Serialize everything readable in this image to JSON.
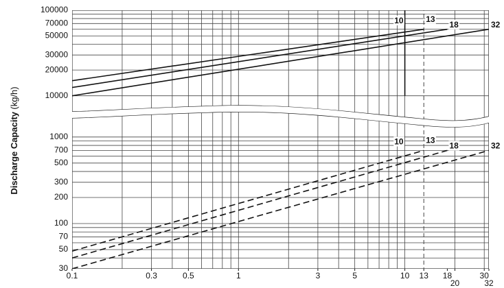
{
  "chart_data": {
    "type": "line",
    "ylabel": "Discharge Capacity",
    "yunit": "(kg/h)",
    "log": true,
    "grid": true,
    "color": "#111111",
    "xlim": [
      0.1,
      32
    ],
    "xticks": [
      0.1,
      0.3,
      0.5,
      1,
      3,
      5,
      10,
      13,
      18,
      20,
      30,
      32
    ],
    "xgrid": [
      0.1,
      0.2,
      0.3,
      0.4,
      0.5,
      0.6,
      0.7,
      0.8,
      0.9,
      1,
      2,
      3,
      4,
      5,
      6,
      7,
      8,
      9,
      10,
      20,
      30
    ],
    "panels": [
      {
        "ylim": [
          6500,
          100000
        ],
        "yticks": [
          10000,
          20000,
          30000,
          50000,
          70000,
          100000
        ],
        "ygrid": [
          10000,
          20000,
          30000,
          40000,
          50000,
          60000,
          70000,
          80000,
          90000,
          100000
        ],
        "dash": false,
        "series": [
          {
            "name": "13",
            "x": [
              0.1,
              13
            ],
            "values": [
              15000,
              60000
            ]
          },
          {
            "name": "18",
            "x": [
              0.1,
              18
            ],
            "values": [
              12500,
              60000
            ]
          },
          {
            "name": "32",
            "x": [
              0.1,
              32
            ],
            "values": [
              10000,
              60000
            ]
          }
        ],
        "ref_lines": [
          {
            "x": 10,
            "label": "10",
            "y": [
              10000,
              100000
            ],
            "dash": false
          },
          {
            "x": 13,
            "dash": true
          }
        ]
      },
      {
        "ylim": [
          30,
          1500
        ],
        "yticks": [
          30,
          50,
          70,
          100,
          200,
          300,
          500,
          700,
          1000
        ],
        "ygrid": [
          30,
          40,
          50,
          60,
          70,
          80,
          90,
          100,
          200,
          300,
          400,
          500,
          600,
          700,
          800,
          900,
          1000
        ],
        "dash": true,
        "series": [
          {
            "name": "13",
            "x": [
              0.1,
              13
            ],
            "values": [
              48,
              700
            ]
          },
          {
            "name": "18",
            "x": [
              0.1,
              18
            ],
            "values": [
              40,
              700
            ]
          },
          {
            "name": "32",
            "x": [
              0.1,
              32
            ],
            "values": [
              30,
              700
            ]
          }
        ],
        "ref_lines": [
          {
            "x": 10,
            "label": "10"
          },
          {
            "x": 13,
            "dash": true
          }
        ]
      }
    ]
  }
}
